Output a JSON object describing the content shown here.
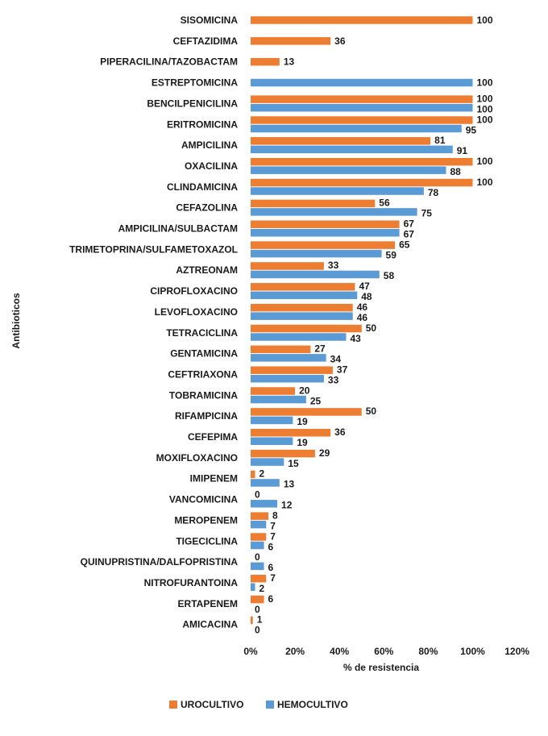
{
  "chart_data": {
    "type": "bar",
    "orientation": "horizontal",
    "categories": [
      "SISOMICINA",
      "CEFTAZIDIMA",
      "PIPERACILINA/TAZOBACTAM",
      "ESTREPTOMICINA",
      "BENCILPENICILINA",
      "ERITROMICINA",
      "AMPICILINA",
      "OXACILINA",
      "CLINDAMICINA",
      "CEFAZOLINA",
      "AMPICILINA/SULBACTAM",
      "TRIMETOPRINA/SULFAMETOXAZOL",
      "AZTREONAM",
      "CIPROFLOXACINO",
      "LEVOFLOXACINO",
      "TETRACICLINA",
      "GENTAMICINA",
      "CEFTRIAXONA",
      "TOBRAMICINA",
      "RIFAMPICINA",
      "CEFEPIMA",
      "MOXIFLOXACINO",
      "IMIPENEM",
      "VANCOMICINA",
      "MEROPENEM",
      "TIGECICLINA",
      "QUINUPRISTINA/DALFOPRISTINA",
      "NITROFURANTOINA",
      "ERTAPENEM",
      "AMICACINA"
    ],
    "series": [
      {
        "name": "UROCULTIVO",
        "color": "#ed7d31",
        "values": [
          100,
          36,
          13,
          null,
          100,
          100,
          81,
          100,
          100,
          56,
          67,
          65,
          33,
          47,
          46,
          50,
          27,
          37,
          20,
          50,
          36,
          29,
          2,
          0,
          8,
          7,
          0,
          7,
          6,
          1
        ]
      },
      {
        "name": "HEMOCULTIVO",
        "color": "#5b9bd5",
        "values": [
          null,
          null,
          null,
          100,
          100,
          95,
          91,
          88,
          78,
          75,
          67,
          59,
          58,
          48,
          46,
          43,
          34,
          33,
          25,
          19,
          19,
          15,
          13,
          12,
          7,
          6,
          6,
          2,
          0,
          0
        ]
      }
    ],
    "xlabel": "% de resistencia",
    "ylabel": "Antibioticos",
    "xlim": [
      0,
      120
    ],
    "xticks": [
      "0%",
      "20%",
      "40%",
      "60%",
      "80%",
      "100%",
      "120%"
    ],
    "grid": false,
    "legend_position": "bottom"
  }
}
